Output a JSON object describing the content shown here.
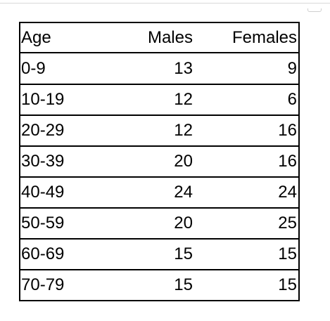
{
  "table": {
    "headers": [
      "Age",
      "Males",
      "Females"
    ],
    "rows": [
      [
        "0-9",
        "13",
        "9"
      ],
      [
        "10-19",
        "12",
        "6"
      ],
      [
        "20-29",
        "12",
        "16"
      ],
      [
        "30-39",
        "20",
        "16"
      ],
      [
        "40-49",
        "24",
        "24"
      ],
      [
        "50-59",
        "20",
        "25"
      ],
      [
        "60-69",
        "15",
        "15"
      ],
      [
        "70-79",
        "15",
        "15"
      ]
    ]
  }
}
